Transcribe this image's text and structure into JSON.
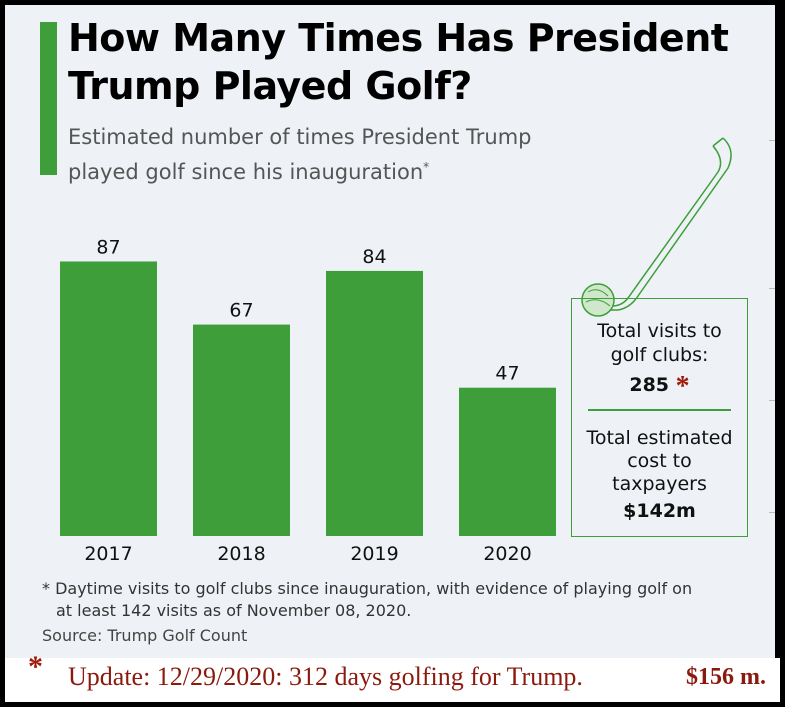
{
  "header": {
    "title": "How Many Times Has President Trump Played Golf?",
    "subtitle": "Estimated number of times President Trump played golf since his inauguration",
    "subtitle_mark": "*"
  },
  "chart_data": {
    "type": "bar",
    "title": "How Many Times Has President Trump Played Golf?",
    "categories": [
      "2017",
      "2018",
      "2019",
      "2020"
    ],
    "values": [
      87,
      67,
      84,
      47
    ],
    "xlabel": "",
    "ylabel": "",
    "ylim": [
      0,
      90
    ],
    "grid": false,
    "bar_color": "#3d9e3a"
  },
  "info_box": {
    "visits_label": "Total visits to golf clubs:",
    "visits_value": "285",
    "visits_mark": "*",
    "cost_label": "Total estimated cost to taxpayers",
    "cost_value": "$142m"
  },
  "footer": {
    "footnote_line1": "* Daytime visits to golf clubs since inauguration, with evidence of playing golf on",
    "footnote_line2": "at least 142 visits as of November 08, 2020.",
    "source": "Source: Trump Golf Count"
  },
  "update": {
    "star": "*",
    "text": "Update: 12/29/2020: 312 days golfing for Trump.",
    "cost": "$156 m."
  },
  "colors": {
    "accent": "#3d9e3a",
    "background": "#eef2f6",
    "update_text": "#8b1a0e"
  }
}
